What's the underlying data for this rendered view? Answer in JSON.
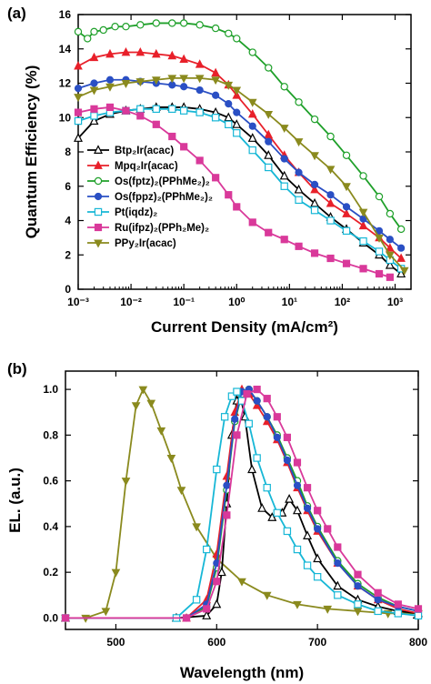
{
  "chart_data": [
    {
      "panel": "(a)",
      "type": "line",
      "xlabel": "Current Density (mA/cm²)",
      "ylabel": "Quantum Efficiency (%)",
      "xscale": "log",
      "xlim": [
        0.001,
        2000
      ],
      "ylim": [
        0,
        16
      ],
      "xticks": [
        "10⁻³",
        "10⁻²",
        "10⁻¹",
        "10⁰",
        "10¹",
        "10²",
        "10³"
      ],
      "xtick_values": [
        0.001,
        0.01,
        0.1,
        1,
        10,
        100,
        1000
      ],
      "yticks": [
        "0",
        "2",
        "4",
        "6",
        "8",
        "10",
        "12",
        "14",
        "16"
      ],
      "ytick_values": [
        0,
        2,
        4,
        6,
        8,
        10,
        12,
        14,
        16
      ],
      "legend_position": "left",
      "series": [
        {
          "name": "Btp₂Ir(acac)",
          "color": "#000000",
          "marker": "triangle-open",
          "x": [
            0.001,
            0.002,
            0.004,
            0.008,
            0.015,
            0.03,
            0.06,
            0.1,
            0.2,
            0.4,
            0.7,
            1,
            2,
            4,
            8,
            15,
            30,
            60,
            120,
            250,
            500,
            800,
            1300
          ],
          "y": [
            8.8,
            9.8,
            10.2,
            10.4,
            10.5,
            10.6,
            10.6,
            10.6,
            10.5,
            10.3,
            10.0,
            9.6,
            8.8,
            7.8,
            6.6,
            5.8,
            5.0,
            4.2,
            3.5,
            2.7,
            2.0,
            1.4,
            0.9
          ]
        },
        {
          "name": "Mpq₂Ir(acac)",
          "color": "#e8202a",
          "marker": "triangle",
          "x": [
            0.001,
            0.002,
            0.004,
            0.008,
            0.015,
            0.03,
            0.06,
            0.1,
            0.2,
            0.4,
            0.7,
            1,
            2,
            4,
            8,
            15,
            30,
            60,
            120,
            250,
            500,
            800,
            1300
          ],
          "y": [
            13.0,
            13.5,
            13.7,
            13.8,
            13.8,
            13.7,
            13.6,
            13.4,
            13.1,
            12.6,
            11.9,
            11.3,
            10.2,
            9.0,
            7.8,
            6.8,
            5.8,
            5.0,
            4.4,
            3.7,
            3.0,
            2.4,
            1.8
          ]
        },
        {
          "name": "Os(fptz)₂(PPhMe₂)₂",
          "color": "#1fa02a",
          "marker": "circle-open",
          "x": [
            0.001,
            0.0015,
            0.002,
            0.003,
            0.005,
            0.008,
            0.015,
            0.03,
            0.06,
            0.1,
            0.2,
            0.4,
            0.7,
            1,
            2,
            4,
            8,
            15,
            30,
            60,
            120,
            250,
            500,
            800,
            1300
          ],
          "y": [
            15.0,
            14.6,
            15.0,
            15.1,
            15.3,
            15.3,
            15.4,
            15.5,
            15.5,
            15.5,
            15.4,
            15.2,
            14.9,
            14.6,
            13.8,
            12.9,
            11.8,
            10.9,
            9.9,
            8.9,
            7.8,
            6.6,
            5.4,
            4.4,
            3.5
          ]
        },
        {
          "name": "Os(fppz)₂(PPhMe₂)₂",
          "color": "#2a4fc4",
          "marker": "circle",
          "x": [
            0.001,
            0.002,
            0.004,
            0.008,
            0.015,
            0.03,
            0.06,
            0.1,
            0.2,
            0.4,
            0.7,
            1,
            2,
            4,
            8,
            15,
            30,
            60,
            120,
            250,
            500,
            800,
            1300
          ],
          "y": [
            11.7,
            12.0,
            12.2,
            12.2,
            12.1,
            12.0,
            11.9,
            11.8,
            11.6,
            11.3,
            10.8,
            10.3,
            9.5,
            8.6,
            7.6,
            6.8,
            6.1,
            5.5,
            4.8,
            4.1,
            3.4,
            2.9,
            2.4
          ]
        },
        {
          "name": "Pt(iqdz)₂",
          "color": "#17b7d6",
          "marker": "square-open",
          "x": [
            0.001,
            0.002,
            0.004,
            0.008,
            0.015,
            0.03,
            0.06,
            0.1,
            0.2,
            0.4,
            0.7,
            1,
            2,
            4,
            8,
            15,
            30,
            60,
            120,
            250,
            500,
            800,
            1300
          ],
          "y": [
            9.8,
            10.1,
            10.3,
            10.4,
            10.5,
            10.5,
            10.5,
            10.4,
            10.3,
            10.0,
            9.6,
            9.1,
            8.1,
            7.1,
            6.0,
            5.2,
            4.6,
            4.0,
            3.4,
            2.8,
            2.2,
            1.7,
            1.2
          ]
        },
        {
          "name": "Ru(ifpz)₂(PPh₂Me)₂",
          "color": "#d9399a",
          "marker": "square",
          "x": [
            0.001,
            0.002,
            0.004,
            0.008,
            0.015,
            0.03,
            0.06,
            0.1,
            0.2,
            0.4,
            0.7,
            1,
            2,
            4,
            8,
            15,
            30,
            60,
            120,
            250,
            500,
            800
          ],
          "y": [
            10.3,
            10.5,
            10.6,
            10.4,
            10.1,
            9.6,
            8.9,
            8.3,
            7.5,
            6.5,
            5.5,
            4.8,
            3.9,
            3.3,
            2.9,
            2.5,
            2.1,
            1.8,
            1.5,
            1.2,
            0.9,
            0.7
          ]
        },
        {
          "name": "PPy₂Ir(acac)",
          "color": "#8a8a1e",
          "marker": "triangle-down",
          "x": [
            0.001,
            0.002,
            0.004,
            0.008,
            0.015,
            0.03,
            0.06,
            0.1,
            0.2,
            0.4,
            0.7,
            1,
            2,
            4,
            8,
            15,
            30,
            60,
            120,
            250,
            500,
            800,
            1500
          ],
          "y": [
            11.2,
            11.6,
            11.8,
            12.0,
            12.1,
            12.2,
            12.3,
            12.3,
            12.3,
            12.2,
            11.9,
            11.6,
            10.9,
            10.2,
            9.4,
            8.6,
            7.8,
            7.0,
            6.0,
            4.5,
            3.0,
            2.0,
            1.1
          ]
        }
      ]
    },
    {
      "panel": "(b)",
      "type": "line",
      "xlabel": "Wavelength (nm)",
      "ylabel": "EL. (a.u.)",
      "xlim": [
        450,
        800
      ],
      "ylim": [
        -0.05,
        1.08
      ],
      "xticks": [
        "500",
        "600",
        "700",
        "800"
      ],
      "xtick_values": [
        500,
        600,
        700,
        800
      ],
      "yticks": [
        "0.0",
        "0.2",
        "0.4",
        "0.6",
        "0.8",
        "1.0"
      ],
      "ytick_values": [
        0.0,
        0.2,
        0.4,
        0.6,
        0.8,
        1.0
      ],
      "series": [
        {
          "color": "#8a8a1e",
          "marker": "triangle-down",
          "x": [
            450,
            470,
            490,
            500,
            510,
            520,
            527,
            535,
            545,
            555,
            565,
            580,
            600,
            625,
            650,
            680,
            710,
            740,
            770,
            800
          ],
          "y": [
            0.0,
            0.0,
            0.03,
            0.2,
            0.6,
            0.93,
            1.0,
            0.94,
            0.82,
            0.7,
            0.56,
            0.4,
            0.26,
            0.16,
            0.1,
            0.06,
            0.04,
            0.03,
            0.02,
            0.02
          ]
        },
        {
          "color": "#000000",
          "marker": "triangle-open",
          "x": [
            450,
            560,
            590,
            600,
            605,
            610,
            615,
            620,
            623,
            628,
            635,
            645,
            655,
            665,
            672,
            680,
            690,
            700,
            720,
            740,
            760,
            780,
            800
          ],
          "y": [
            0.0,
            0.0,
            0.01,
            0.06,
            0.2,
            0.5,
            0.8,
            0.95,
            0.98,
            0.88,
            0.65,
            0.48,
            0.44,
            0.46,
            0.52,
            0.47,
            0.36,
            0.26,
            0.14,
            0.08,
            0.05,
            0.03,
            0.02
          ]
        },
        {
          "color": "#e8202a",
          "marker": "triangle",
          "x": [
            450,
            570,
            590,
            600,
            610,
            618,
            625,
            632,
            640,
            650,
            660,
            670,
            680,
            690,
            700,
            720,
            740,
            760,
            780,
            800
          ],
          "y": [
            0.0,
            0.0,
            0.08,
            0.28,
            0.62,
            0.9,
            1.0,
            0.98,
            0.93,
            0.86,
            0.78,
            0.68,
            0.57,
            0.47,
            0.38,
            0.24,
            0.14,
            0.08,
            0.04,
            0.02
          ]
        },
        {
          "color": "#1fa02a",
          "marker": "circle-open",
          "x": [
            450,
            570,
            590,
            600,
            610,
            618,
            625,
            632,
            640,
            650,
            660,
            670,
            680,
            690,
            700,
            720,
            740,
            760,
            780,
            800
          ],
          "y": [
            0.0,
            0.0,
            0.05,
            0.22,
            0.56,
            0.86,
            0.98,
            1.0,
            0.95,
            0.88,
            0.8,
            0.7,
            0.6,
            0.49,
            0.4,
            0.25,
            0.15,
            0.09,
            0.05,
            0.03
          ]
        },
        {
          "color": "#2a4fc4",
          "marker": "circle",
          "x": [
            450,
            570,
            590,
            600,
            610,
            618,
            625,
            632,
            640,
            650,
            660,
            670,
            680,
            690,
            700,
            720,
            740,
            760,
            780,
            800
          ],
          "y": [
            0.0,
            0.0,
            0.06,
            0.24,
            0.58,
            0.87,
            0.99,
            1.0,
            0.95,
            0.88,
            0.79,
            0.69,
            0.58,
            0.48,
            0.39,
            0.24,
            0.14,
            0.08,
            0.05,
            0.03
          ]
        },
        {
          "color": "#17b7d6",
          "marker": "square-open",
          "x": [
            450,
            560,
            580,
            590,
            600,
            608,
            615,
            620,
            625,
            632,
            640,
            650,
            660,
            670,
            680,
            690,
            700,
            720,
            740,
            760,
            780,
            800
          ],
          "y": [
            0.0,
            0.0,
            0.08,
            0.3,
            0.65,
            0.88,
            0.97,
            0.99,
            0.95,
            0.85,
            0.7,
            0.57,
            0.46,
            0.38,
            0.3,
            0.23,
            0.18,
            0.1,
            0.06,
            0.03,
            0.02,
            0.01
          ]
        },
        {
          "color": "#d9399a",
          "marker": "square",
          "x": [
            450,
            570,
            590,
            600,
            610,
            620,
            630,
            640,
            650,
            660,
            670,
            680,
            690,
            700,
            710,
            720,
            740,
            760,
            780,
            800
          ],
          "y": [
            0.0,
            0.0,
            0.04,
            0.16,
            0.45,
            0.8,
            0.98,
            1.0,
            0.96,
            0.88,
            0.79,
            0.68,
            0.57,
            0.47,
            0.39,
            0.31,
            0.19,
            0.11,
            0.06,
            0.04
          ]
        }
      ]
    }
  ]
}
